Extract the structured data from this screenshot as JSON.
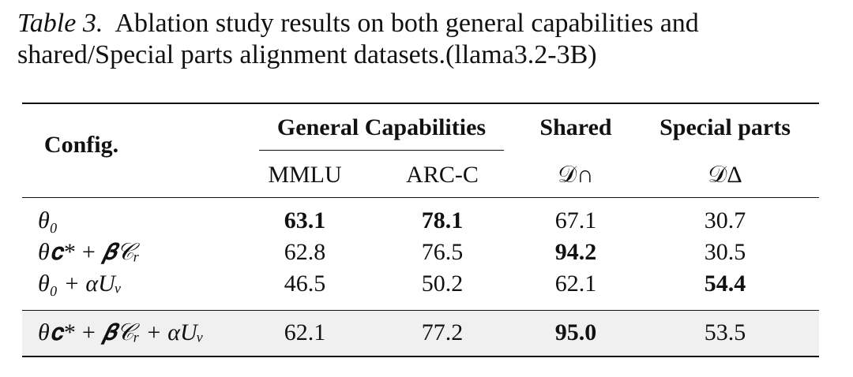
{
  "caption": {
    "label": "Table 3.",
    "text": "Ablation study results on both general capabilities and shared/Special parts alignment datasets.(llama3.2-3B)"
  },
  "table": {
    "config_header": "Config.",
    "groups": [
      "General Capabilities",
      "Shared",
      "Special parts"
    ],
    "columns": [
      "MMLU",
      "ARC-C",
      "𝒟∩",
      "𝒟Δ"
    ],
    "rows": [
      {
        "label": "θ₀",
        "cells": [
          "63.1",
          "78.1",
          "67.1",
          "30.7"
        ],
        "bold": [
          0,
          1
        ]
      },
      {
        "label": "θ𝐜* + 𝜷𝒞ᵣ",
        "cells": [
          "62.8",
          "76.5",
          "94.2",
          "30.5"
        ],
        "bold": [
          2
        ]
      },
      {
        "label": "θ₀ + αUᵥ",
        "cells": [
          "46.5",
          "50.2",
          "62.1",
          "54.4"
        ],
        "bold": [
          3
        ]
      },
      {
        "label": "θ𝐜* + 𝜷𝒞ᵣ + αUᵥ",
        "cells": [
          "62.1",
          "77.2",
          "95.0",
          "53.5"
        ],
        "bold": [
          2
        ],
        "shaded": true
      }
    ]
  }
}
